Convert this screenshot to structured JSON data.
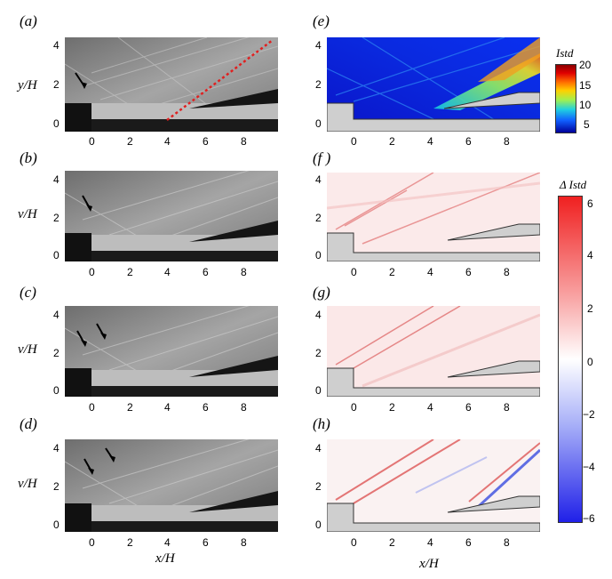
{
  "figure": {
    "panel_labels": [
      "(a)",
      "(b)",
      "(c)",
      "(d)",
      "(e)",
      "(f )",
      "(g)",
      "(h)"
    ],
    "y_label_top": "y/H",
    "y_label_rows": [
      "v/H",
      "v/H",
      "v/H"
    ],
    "x_label": "x/H",
    "x_ticks": [
      "0",
      "2",
      "4",
      "6",
      "8"
    ],
    "y_ticks": [
      "0",
      "2",
      "4"
    ],
    "colorbar_top": {
      "title": "Istd",
      "ticks": [
        "20",
        "15",
        "10",
        "5"
      ]
    },
    "colorbar_bottom": {
      "title": "Δ Istd",
      "ticks": [
        "6",
        "4",
        "2",
        "0",
        "−2",
        "−4",
        "−6"
      ]
    }
  }
}
